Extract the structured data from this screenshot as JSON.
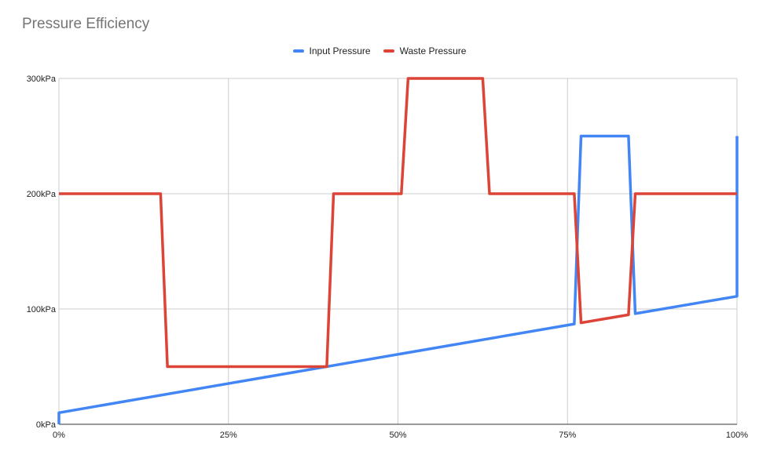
{
  "chart_data": {
    "type": "line",
    "title": "Pressure Efficiency",
    "xlabel": "",
    "ylabel": "",
    "xlim": [
      0,
      100
    ],
    "ylim": [
      0,
      300
    ],
    "x_ticks": [
      {
        "value": 0,
        "label": "0%"
      },
      {
        "value": 25,
        "label": "25%"
      },
      {
        "value": 50,
        "label": "50%"
      },
      {
        "value": 75,
        "label": "75%"
      },
      {
        "value": 100,
        "label": "100%"
      }
    ],
    "y_ticks": [
      {
        "value": 0,
        "label": "0kPa"
      },
      {
        "value": 100,
        "label": "100kPa"
      },
      {
        "value": 200,
        "label": "200kPa"
      },
      {
        "value": 300,
        "label": "300kPa"
      }
    ],
    "grid": true,
    "legend_position": "top-center",
    "series": [
      {
        "name": "Input Pressure",
        "color": "#4285f4",
        "points": [
          [
            0,
            0
          ],
          [
            0,
            10
          ],
          [
            76,
            87
          ],
          [
            77,
            250
          ],
          [
            84,
            250
          ],
          [
            85,
            96
          ],
          [
            100,
            111
          ],
          [
            100,
            250
          ]
        ]
      },
      {
        "name": "Waste Pressure",
        "color": "#db4437",
        "points": [
          [
            0,
            200
          ],
          [
            15,
            200
          ],
          [
            16,
            50
          ],
          [
            39.5,
            50
          ],
          [
            40.5,
            200
          ],
          [
            50.5,
            200
          ],
          [
            51.5,
            300
          ],
          [
            62.5,
            300
          ],
          [
            63.5,
            200
          ],
          [
            76,
            200
          ],
          [
            77,
            88
          ],
          [
            84,
            95
          ],
          [
            85,
            200
          ],
          [
            100,
            200
          ]
        ]
      }
    ]
  }
}
